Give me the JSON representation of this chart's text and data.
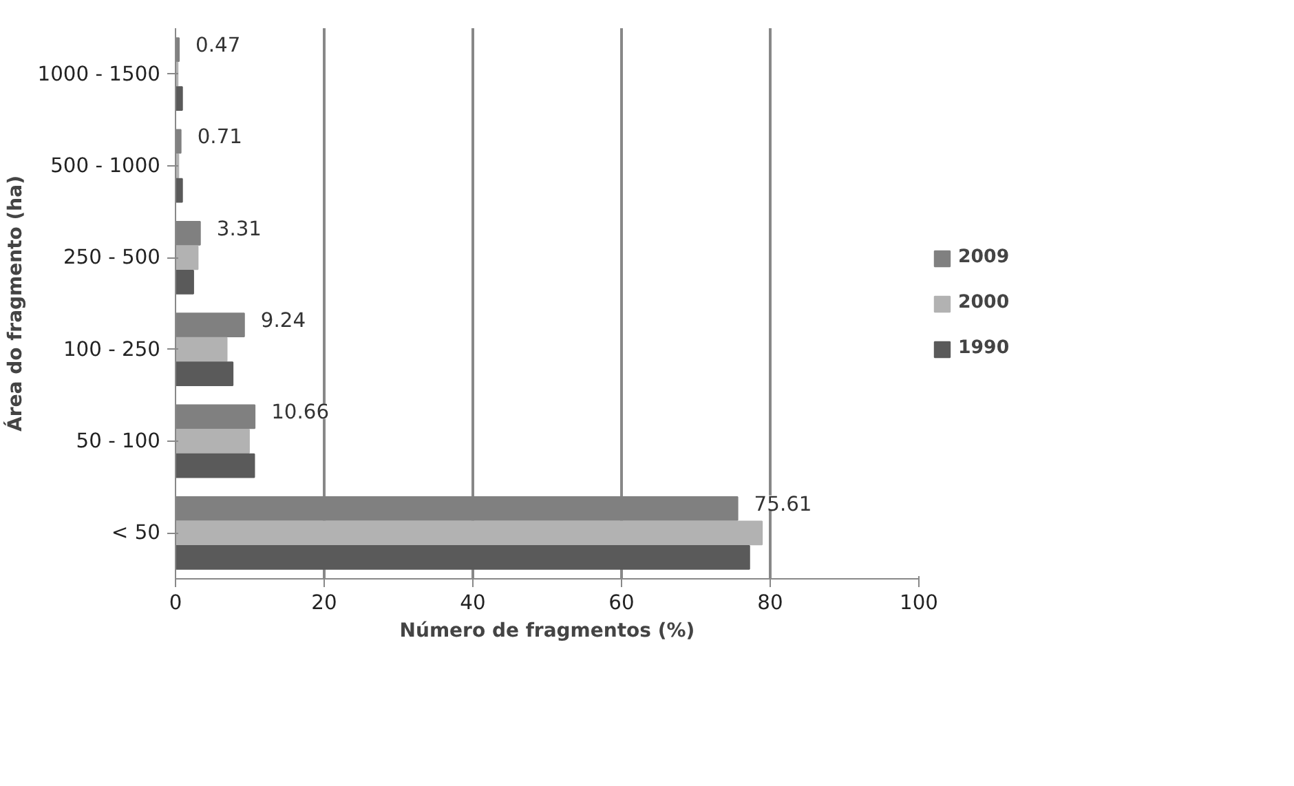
{
  "chart_data": {
    "type": "bar",
    "orientation": "horizontal",
    "xlabel": "Número de fragmentos (%)",
    "ylabel": "Área do fragmento (ha)",
    "categories": [
      "1000 - 1500",
      "500 - 1000",
      "250 - 500",
      "100 - 250",
      "50 - 100",
      "< 50"
    ],
    "series": [
      {
        "name": "2009",
        "color": "#808080",
        "values": [
          0.47,
          0.71,
          3.31,
          9.24,
          10.66,
          75.61
        ],
        "value_labels": [
          "0.47",
          "0.71",
          "3.31",
          "9.24",
          "10.66",
          "75.61"
        ]
      },
      {
        "name": "2000",
        "color": "#b2b2b2",
        "values": [
          0.3,
          0.4,
          3.0,
          6.9,
          9.9,
          78.9
        ]
      },
      {
        "name": "1990",
        "color": "#5a5a5a",
        "values": [
          0.9,
          0.9,
          2.4,
          7.7,
          10.6,
          77.2
        ]
      }
    ],
    "xlim": [
      0,
      100
    ],
    "xticks": [
      0,
      20,
      40,
      60,
      80,
      100
    ],
    "grid": "x",
    "legend": "right"
  }
}
